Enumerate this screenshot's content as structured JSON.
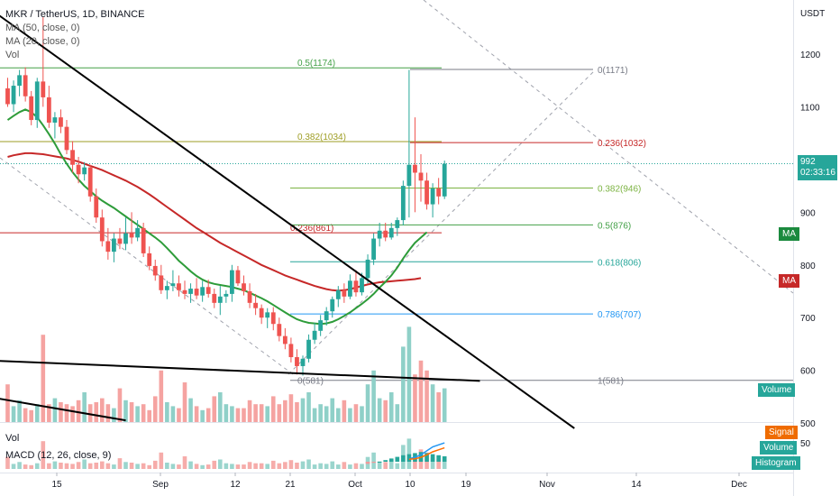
{
  "legend": {
    "symbol": "MKR / TetherUS, 1D, BINANCE",
    "ma50": "MA (50, close, 0)",
    "ma20": "MA (20, close, 0)",
    "vol": "Vol"
  },
  "sub_legend": {
    "vol": "Vol",
    "macd": "MACD (12, 26, close, 9)"
  },
  "price_axis": {
    "currency": "USDT",
    "ticks": [
      "1200",
      "1100",
      "1000",
      "900",
      "800",
      "700",
      "600",
      "500"
    ]
  },
  "sub_axis": {
    "ticks": [
      "50"
    ]
  },
  "time_axis": {
    "ticks": [
      "15",
      "Sep",
      "12",
      "21",
      "Oct",
      "10",
      "19",
      "Nov",
      "14",
      "Dec"
    ]
  },
  "last_price": {
    "value": "992",
    "countdown": "02:33:16"
  },
  "tags": {
    "ma_green": "MA",
    "ma_red": "MA",
    "volume": "Volume",
    "signal": "Signal",
    "volume2": "Volume",
    "histogram": "Histogram"
  },
  "colors": {
    "up": "#26a69a",
    "down": "#ef5350",
    "up_vol": "#8fd0c8",
    "down_vol": "#f5a3a1",
    "ma20": "#2e9c3a",
    "ma50": "#c62828",
    "signal": "#ff6d00",
    "macd": "#2196f3",
    "tag_green": "#1b8a3e",
    "tag_red": "#c62828",
    "tag_teal": "#26a69a",
    "tag_orange": "#ef6c00"
  },
  "chart_data": {
    "type": "candlestick",
    "title": "MKR / TetherUS, 1D, BINANCE",
    "ylim": [
      500,
      1270
    ],
    "y_unit": "USDT",
    "indicators": [
      "MA (50, close, 0)",
      "MA (20, close, 0)",
      "Vol",
      "MACD (12, 26, close, 9)"
    ],
    "candles": [
      [
        0,
        1135,
        1155,
        1100,
        1105
      ],
      [
        1,
        1105,
        1150,
        1090,
        1140
      ],
      [
        2,
        1140,
        1170,
        1120,
        1160
      ],
      [
        3,
        1160,
        1175,
        1110,
        1120
      ],
      [
        4,
        1120,
        1130,
        1065,
        1075
      ],
      [
        5,
        1075,
        1155,
        1060,
        1148
      ],
      [
        6,
        1148,
        1270,
        1100,
        1118
      ],
      [
        7,
        1118,
        1140,
        1060,
        1070
      ],
      [
        8,
        1070,
        1090,
        1040,
        1080
      ],
      [
        9,
        1080,
        1095,
        1050,
        1062
      ],
      [
        10,
        1062,
        1075,
        1010,
        1018
      ],
      [
        11,
        1018,
        1035,
        975,
        990
      ],
      [
        12,
        990,
        1005,
        955,
        972
      ],
      [
        13,
        972,
        995,
        960,
        985
      ],
      [
        14,
        985,
        990,
        920,
        930
      ],
      [
        15,
        930,
        945,
        880,
        890
      ],
      [
        16,
        890,
        905,
        835,
        845
      ],
      [
        17,
        845,
        870,
        810,
        825
      ],
      [
        18,
        825,
        860,
        805,
        850
      ],
      [
        19,
        850,
        870,
        830,
        840
      ],
      [
        20,
        840,
        890,
        828,
        860
      ],
      [
        21,
        860,
        900,
        840,
        852
      ],
      [
        22,
        852,
        885,
        845,
        870
      ],
      [
        23,
        870,
        880,
        815,
        822
      ],
      [
        24,
        822,
        835,
        790,
        798
      ],
      [
        25,
        798,
        810,
        770,
        780
      ],
      [
        26,
        780,
        800,
        745,
        752
      ],
      [
        27,
        752,
        770,
        735,
        760
      ],
      [
        28,
        760,
        790,
        750,
        765
      ],
      [
        29,
        765,
        780,
        740,
        752
      ],
      [
        30,
        752,
        770,
        735,
        745
      ],
      [
        31,
        745,
        765,
        728,
        755
      ],
      [
        32,
        755,
        775,
        735,
        742
      ],
      [
        33,
        742,
        770,
        730,
        758
      ],
      [
        34,
        758,
        772,
        738,
        745
      ],
      [
        35,
        745,
        755,
        718,
        728
      ],
      [
        36,
        728,
        760,
        705,
        740
      ],
      [
        37,
        740,
        752,
        728,
        745
      ],
      [
        38,
        745,
        800,
        730,
        790
      ],
      [
        39,
        790,
        798,
        760,
        765
      ],
      [
        40,
        765,
        780,
        742,
        750
      ],
      [
        41,
        750,
        765,
        718,
        728
      ],
      [
        42,
        728,
        745,
        705,
        718
      ],
      [
        43,
        718,
        725,
        688,
        700
      ],
      [
        44,
        700,
        718,
        680,
        710
      ],
      [
        45,
        710,
        720,
        676,
        688
      ],
      [
        46,
        688,
        700,
        655,
        665
      ],
      [
        47,
        665,
        680,
        640,
        650
      ],
      [
        48,
        650,
        662,
        615,
        625
      ],
      [
        49,
        625,
        640,
        592,
        608
      ],
      [
        50,
        608,
        628,
        590,
        622
      ],
      [
        51,
        622,
        668,
        615,
        658
      ],
      [
        52,
        658,
        690,
        650,
        675
      ],
      [
        53,
        675,
        705,
        665,
        695
      ],
      [
        54,
        695,
        720,
        685,
        712
      ],
      [
        55,
        712,
        740,
        700,
        735
      ],
      [
        56,
        735,
        760,
        720,
        752
      ],
      [
        57,
        752,
        765,
        728,
        740
      ],
      [
        58,
        740,
        782,
        735,
        770
      ],
      [
        59,
        770,
        790,
        740,
        748
      ],
      [
        60,
        748,
        785,
        742,
        775
      ],
      [
        61,
        775,
        820,
        765,
        810
      ],
      [
        62,
        810,
        860,
        800,
        850
      ],
      [
        63,
        850,
        880,
        835,
        865
      ],
      [
        64,
        865,
        880,
        845,
        852
      ],
      [
        65,
        852,
        880,
        848,
        870
      ],
      [
        66,
        870,
        890,
        855,
        885
      ],
      [
        67,
        885,
        960,
        875,
        950
      ],
      [
        68,
        950,
        1170,
        890,
        990
      ],
      [
        69,
        990,
        1080,
        900,
        975
      ],
      [
        70,
        975,
        1010,
        920,
        960
      ],
      [
        71,
        960,
        975,
        905,
        915
      ],
      [
        72,
        915,
        955,
        890,
        945
      ],
      [
        73,
        945,
        965,
        915,
        930
      ],
      [
        74,
        930,
        998,
        925,
        992
      ]
    ],
    "volume": [
      38,
      16,
      22,
      14,
      12,
      18,
      88,
      18,
      24,
      20,
      18,
      16,
      22,
      30,
      18,
      20,
      24,
      18,
      14,
      34,
      22,
      20,
      16,
      18,
      12,
      26,
      52,
      20,
      16,
      14,
      40,
      24,
      16,
      12,
      14,
      26,
      30,
      18,
      16,
      14,
      14,
      22,
      18,
      18,
      16,
      26,
      18,
      22,
      28,
      20,
      24,
      30,
      14,
      18,
      16,
      24,
      14,
      22,
      14,
      18,
      16,
      38,
      52,
      24,
      22,
      30,
      18,
      76,
      96,
      48,
      62,
      52,
      38,
      30,
      34
    ],
    "ma20": [
      1075,
      1083,
      1090,
      1095,
      1090,
      1080,
      1065,
      1048,
      1030,
      1010,
      992,
      976,
      962,
      950,
      940,
      930,
      922,
      915,
      908,
      900,
      892,
      884,
      876,
      868,
      860,
      852,
      843,
      832,
      820,
      808,
      798,
      788,
      779,
      772,
      767,
      764,
      762,
      760,
      758,
      755,
      752,
      747,
      742,
      737,
      731,
      724,
      717,
      710,
      703,
      697,
      693,
      690,
      689,
      688,
      689,
      692,
      697,
      703,
      710,
      718,
      726,
      735,
      745,
      757,
      768,
      780,
      795,
      812,
      828,
      842,
      852,
      862
    ],
    "ma50": [
      1005,
      1008,
      1010,
      1012,
      1012,
      1011,
      1010,
      1008,
      1006,
      1004,
      1002,
      999,
      996,
      992,
      988,
      984,
      980,
      975,
      970,
      965,
      960,
      954,
      948,
      941,
      934,
      926,
      918,
      910,
      902,
      894,
      886,
      878,
      870,
      863,
      856,
      849,
      842,
      836,
      830,
      824,
      818,
      812,
      806,
      800,
      795,
      790,
      785,
      780,
      776,
      772,
      768,
      764,
      760,
      757,
      754,
      752,
      751,
      752,
      754,
      757,
      760,
      763,
      765,
      767,
      768,
      769,
      770,
      771,
      772,
      773,
      775
    ],
    "fib_levels_1": [
      {
        "ratio": "0.236",
        "value": 861,
        "label": "0.236(861)",
        "color": "#c62828"
      },
      {
        "ratio": "0.382",
        "value": 1034,
        "label": "0.382(1034)",
        "color": "#9e9d24"
      },
      {
        "ratio": "0.5",
        "value": 1174,
        "label": "0.5(1174)",
        "color": "#43a047"
      },
      {
        "ratio": "0",
        "value": 581,
        "label": "0(581)",
        "color": "#787b86"
      }
    ],
    "fib_levels_2": [
      {
        "ratio": "0",
        "value": 1171,
        "label": "0(1171)",
        "color": "#787b86"
      },
      {
        "ratio": "0.236",
        "value": 1032,
        "label": "0.236(1032)",
        "color": "#c62828"
      },
      {
        "ratio": "0.382",
        "value": 946,
        "label": "0.382(946)",
        "color": "#7cb342"
      },
      {
        "ratio": "0.5",
        "value": 876,
        "label": "0.5(876)",
        "color": "#43a047"
      },
      {
        "ratio": "0.618",
        "value": 806,
        "label": "0.618(806)",
        "color": "#26a69a"
      },
      {
        "ratio": "0.786",
        "value": 707,
        "label": "0.786(707)",
        "color": "#2196f3"
      },
      {
        "ratio": "1",
        "value": 581,
        "label": "1(581)",
        "color": "#787b86"
      }
    ],
    "trendlines": [
      {
        "name": "descending-resistance",
        "from": [
          -6,
          1310
        ],
        "to": [
          96,
          490
        ],
        "color": "#000000"
      },
      {
        "name": "lower-support",
        "from": [
          -6,
          620
        ],
        "to": [
          80,
          580
        ],
        "color": "#000000"
      },
      {
        "name": "channel-lower",
        "from": [
          -6,
          555
        ],
        "to": [
          20,
          505
        ],
        "color": "#000000"
      }
    ],
    "macd": {
      "signal": [
        5,
        6,
        9,
        14,
        20,
        24,
        28
      ],
      "macd": [
        6,
        9,
        14,
        22,
        30,
        34,
        38
      ],
      "histogram": [
        -4,
        -2,
        0,
        3,
        6,
        9,
        12,
        14,
        16,
        18,
        16,
        14,
        12,
        10
      ]
    }
  }
}
